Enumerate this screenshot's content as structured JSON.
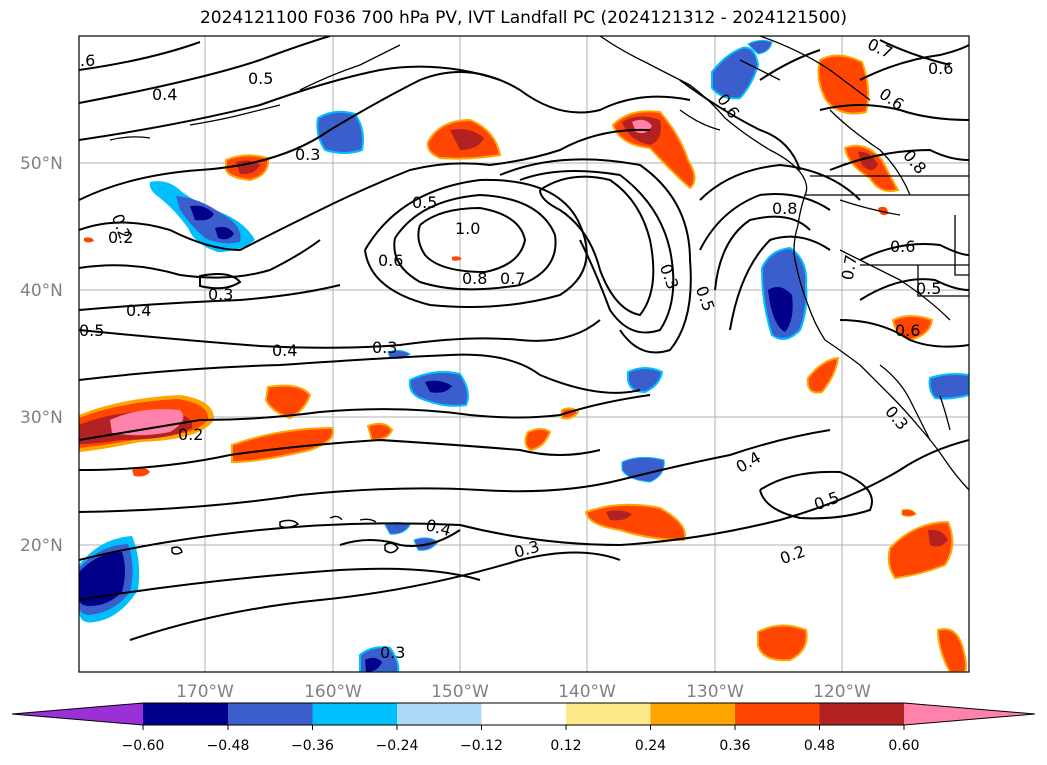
{
  "title": "2024121100 F036 700 hPa PV, IVT Landfall PC (2024121312 - 2024121500)",
  "latitude_labels": [
    "50°N",
    "40°N",
    "30°N",
    "20°N"
  ],
  "longitude_labels": [
    "170°W",
    "160°W",
    "150°W",
    "140°W",
    "130°W",
    "120°W"
  ],
  "colorbar": {
    "tick_labels": [
      "−0.60",
      "−0.48",
      "−0.36",
      "−0.24",
      "−0.12",
      "0.12",
      "0.24",
      "0.36",
      "0.48",
      "0.60"
    ],
    "colors": [
      "#9b30d9",
      "#00008b",
      "#3a5fcd",
      "#00bfff",
      "#add8f6",
      "#ffffff",
      "#ffe88a",
      "#ffa500",
      "#ff4500",
      "#b22222",
      "#ff82ab"
    ]
  },
  "contour_labels": [
    ".6",
    "0.5",
    "0.4",
    "0.3",
    "0.2",
    "0.3",
    "0.4",
    "0.5",
    "0.6",
    "0.5",
    "1.0",
    "0.8",
    "0.7",
    "0.4",
    "0.3",
    "0.2",
    "0.3",
    "0.5",
    "0.6",
    "0.8",
    "0.7",
    "0.6",
    "0.6",
    "0.8",
    "0.6",
    "0.5",
    "0.6",
    "0.7",
    "0.3",
    "0.4",
    "0.5",
    "0.2",
    "0.3",
    "0.4",
    "0.3",
    "0.2"
  ]
}
